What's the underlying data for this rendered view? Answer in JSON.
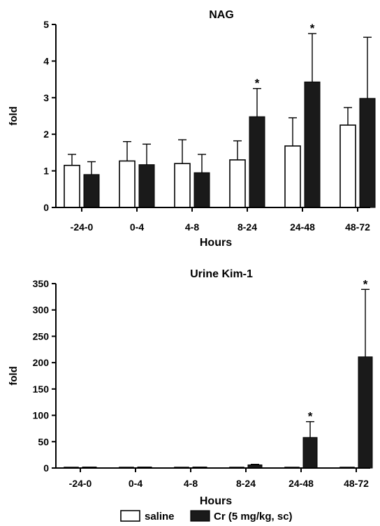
{
  "chart_data": [
    {
      "type": "bar",
      "title": "NAG",
      "xlabel": "Hours",
      "ylabel": "fold",
      "ylim": [
        0,
        5
      ],
      "yticks": [
        0,
        1,
        2,
        3,
        4,
        5
      ],
      "categories": [
        "-24-0",
        "0-4",
        "4-8",
        "8-24",
        "24-48",
        "48-72"
      ],
      "series": [
        {
          "name": "saline",
          "values": [
            1.15,
            1.27,
            1.2,
            1.3,
            1.68,
            2.25
          ],
          "errors": [
            0.3,
            0.53,
            0.65,
            0.52,
            0.77,
            0.48
          ]
        },
        {
          "name": "Cr (5 mg/kg, sc)",
          "values": [
            0.9,
            1.17,
            0.95,
            2.48,
            3.43,
            2.98
          ],
          "errors": [
            0.35,
            0.56,
            0.5,
            0.77,
            1.32,
            1.67
          ]
        }
      ],
      "significance": [
        "",
        "",
        "",
        "*",
        "*",
        ""
      ]
    },
    {
      "type": "bar",
      "title": "Urine Kim-1",
      "xlabel": "Hours",
      "ylabel": "fold",
      "ylim": [
        0,
        350
      ],
      "yticks": [
        0,
        50,
        100,
        150,
        200,
        250,
        300,
        350
      ],
      "categories": [
        "-24-0",
        "0-4",
        "4-8",
        "8-24",
        "24-48",
        "48-72"
      ],
      "series": [
        {
          "name": "saline",
          "values": [
            1,
            1,
            1,
            1,
            1,
            1
          ],
          "errors": [
            0,
            0,
            0,
            0,
            0,
            0
          ]
        },
        {
          "name": "Cr (5 mg/kg, sc)",
          "values": [
            2,
            2,
            2,
            6,
            58,
            211
          ],
          "errors": [
            0,
            0,
            0,
            1,
            30,
            128
          ]
        }
      ],
      "significance": [
        "",
        "",
        "",
        "",
        "*",
        "*"
      ]
    }
  ],
  "legend": {
    "placement": "bottom",
    "items": [
      {
        "label": "saline",
        "fill": "#ffffff"
      },
      {
        "label": "Cr (5 mg/kg, sc)",
        "fill": "#1a1a1a"
      }
    ]
  },
  "colors": {
    "saline": "#ffffff",
    "cr": "#1a1a1a",
    "axis": "#000000"
  }
}
